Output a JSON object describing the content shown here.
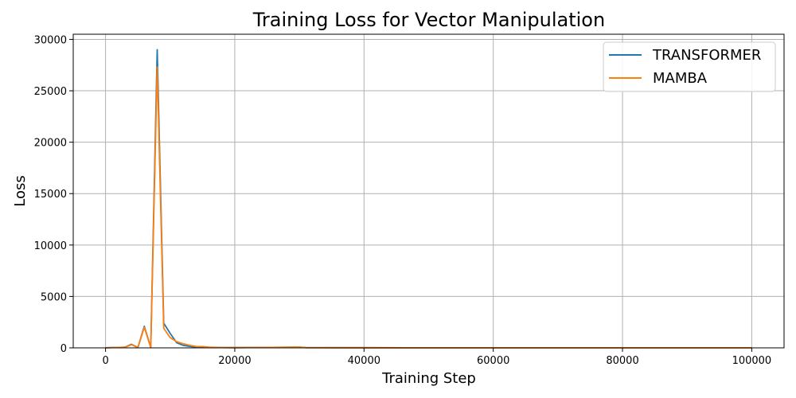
{
  "chart_data": {
    "type": "line",
    "title": "Training Loss for Vector Manipulation",
    "xlabel": "Training Step",
    "ylabel": "Loss",
    "xlim": [
      -5000,
      105000
    ],
    "ylim": [
      0,
      30500
    ],
    "xticks": [
      0,
      20000,
      40000,
      60000,
      80000,
      100000
    ],
    "yticks": [
      0,
      5000,
      10000,
      15000,
      20000,
      25000,
      30000
    ],
    "grid": true,
    "legend_position": "top-right",
    "series": [
      {
        "name": "TRANSFORMER",
        "color": "#1f77b4",
        "x": [
          0,
          1000,
          2000,
          3000,
          4000,
          5000,
          6000,
          7000,
          8000,
          9000,
          10000,
          11000,
          12000,
          13000,
          14000,
          15000,
          16000,
          18000,
          20000,
          24000,
          30000,
          31000,
          40000,
          50000,
          60000,
          70000,
          80000,
          90000,
          100000
        ],
        "y": [
          10,
          30,
          40,
          60,
          350,
          30,
          2100,
          30,
          29000,
          2400,
          1400,
          500,
          250,
          150,
          80,
          100,
          50,
          30,
          20,
          40,
          60,
          20,
          15,
          10,
          8,
          6,
          5,
          5,
          5
        ]
      },
      {
        "name": "MAMBA",
        "color": "#ff7f0e",
        "x": [
          0,
          1000,
          2000,
          3000,
          4000,
          5000,
          6000,
          7000,
          8000,
          9000,
          10000,
          11000,
          12000,
          13000,
          14000,
          15000,
          16000,
          18000,
          20000,
          24000,
          30000,
          31000,
          40000,
          50000,
          60000,
          70000,
          80000,
          90000,
          100000
        ],
        "y": [
          10,
          30,
          40,
          60,
          300,
          30,
          2000,
          30,
          27300,
          1900,
          1000,
          600,
          400,
          250,
          130,
          120,
          60,
          30,
          20,
          40,
          80,
          20,
          15,
          10,
          8,
          6,
          5,
          5,
          5
        ]
      }
    ]
  }
}
